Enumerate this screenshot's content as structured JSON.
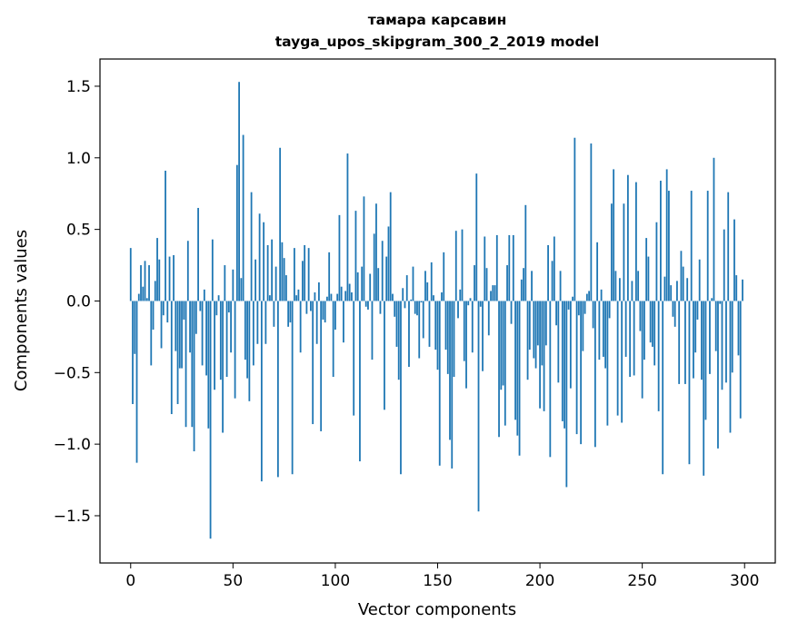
{
  "chart_data": {
    "type": "bar",
    "title": "тамара карсавин",
    "subtitle": "tayga_upos_skipgram_300_2_2019 model",
    "xlabel": "Vector components",
    "ylabel": "Components values",
    "xlim": [
      -15,
      315
    ],
    "ylim": [
      -1.83,
      1.69
    ],
    "xticks": [
      0,
      50,
      100,
      150,
      200,
      250,
      300
    ],
    "yticks": [
      -1.5,
      -1.0,
      -0.5,
      0.0,
      0.5,
      1.0,
      1.5
    ],
    "ytick_labels": [
      "−1.5",
      "−1.0",
      "−0.5",
      "0.0",
      "0.5",
      "1.0",
      "1.5"
    ],
    "grid": false,
    "bar_color": "#1f77b4",
    "x_start": 0,
    "values": [
      0.37,
      -0.72,
      -0.37,
      -1.13,
      0.05,
      0.25,
      0.1,
      0.28,
      0.02,
      0.25,
      -0.45,
      -0.2,
      0.14,
      0.44,
      0.29,
      -0.33,
      -0.1,
      0.91,
      -0.15,
      0.31,
      -0.79,
      0.32,
      -0.35,
      -0.72,
      -0.47,
      -0.47,
      -0.13,
      -0.88,
      0.42,
      -0.36,
      -0.88,
      -1.05,
      -0.23,
      0.65,
      -0.07,
      -0.45,
      0.08,
      -0.52,
      -0.89,
      -1.66,
      0.43,
      -0.62,
      -0.1,
      0.04,
      -0.55,
      -0.92,
      0.25,
      -0.53,
      -0.08,
      -0.36,
      0.22,
      -0.68,
      0.95,
      1.53,
      0.16,
      1.16,
      -0.41,
      -0.54,
      -0.7,
      0.76,
      -0.45,
      0.29,
      -0.3,
      0.61,
      -1.26,
      0.55,
      -0.3,
      0.39,
      0.04,
      0.43,
      -0.18,
      0.24,
      -1.23,
      1.07,
      0.41,
      0.3,
      0.18,
      -0.18,
      -0.15,
      -1.21,
      0.37,
      0.04,
      0.08,
      -0.36,
      0.28,
      0.39,
      -0.09,
      0.37,
      -0.07,
      -0.86,
      0.06,
      -0.3,
      0.13,
      -0.91,
      -0.13,
      -0.15,
      0.03,
      0.34,
      0.05,
      -0.53,
      -0.2,
      0.05,
      0.6,
      0.1,
      -0.29,
      0.07,
      1.03,
      0.12,
      0.06,
      -0.8,
      0.63,
      0.2,
      -1.12,
      0.24,
      0.73,
      -0.04,
      -0.06,
      0.19,
      -0.41,
      0.47,
      0.68,
      0.23,
      -0.09,
      0.42,
      -0.76,
      0.31,
      0.52,
      0.76,
      0.05,
      -0.11,
      -0.32,
      -0.55,
      -1.21,
      0.09,
      -0.05,
      0.18,
      -0.46,
      0.01,
      0.24,
      -0.09,
      -0.1,
      -0.4,
      -0.01,
      -0.26,
      0.21,
      0.13,
      -0.32,
      0.27,
      0.04,
      -0.34,
      -0.48,
      -1.15,
      0.06,
      0.34,
      -0.34,
      -0.51,
      -0.97,
      -1.17,
      -0.53,
      0.49,
      -0.12,
      0.08,
      0.5,
      -0.42,
      -0.61,
      -0.03,
      0.02,
      -0.36,
      0.25,
      0.89,
      -1.47,
      -0.04,
      -0.49,
      0.45,
      0.23,
      -0.24,
      0.07,
      0.11,
      0.11,
      0.46,
      -0.95,
      -0.62,
      -0.59,
      -0.87,
      0.25,
      0.46,
      -0.16,
      0.46,
      -0.83,
      -0.94,
      -1.08,
      0.15,
      0.23,
      0.67,
      -0.55,
      -0.34,
      0.21,
      -0.4,
      -0.47,
      -0.31,
      -0.75,
      -0.45,
      -0.77,
      -0.31,
      0.39,
      -1.09,
      0.28,
      0.45,
      -0.17,
      -0.57,
      0.21,
      -0.84,
      -0.89,
      -1.3,
      -0.06,
      -0.61,
      0.03,
      1.14,
      -0.93,
      -0.1,
      -1.0,
      -0.35,
      -0.09,
      0.05,
      0.07,
      1.1,
      -0.19,
      -1.02,
      0.41,
      -0.41,
      0.08,
      -0.39,
      -0.47,
      -0.87,
      -0.12,
      0.68,
      0.92,
      0.21,
      -0.8,
      0.16,
      -0.85,
      0.68,
      -0.39,
      0.88,
      -0.53,
      0.14,
      -0.52,
      0.83,
      0.21,
      -0.21,
      -0.68,
      -0.41,
      0.44,
      0.31,
      -0.29,
      -0.32,
      -0.45,
      0.55,
      -0.77,
      0.84,
      -1.21,
      0.17,
      0.92,
      0.77,
      0.11,
      -0.11,
      -0.18,
      0.14,
      -0.58,
      0.35,
      0.24,
      -0.58,
      0.16,
      -1.14,
      0.77,
      -0.54,
      -0.36,
      -0.13,
      0.29,
      -0.55,
      -1.22,
      -0.83,
      0.77,
      -0.51,
      0.02,
      1.0,
      -0.35,
      -1.03,
      -0.02,
      -0.62,
      0.5,
      -0.57,
      0.76,
      -0.92,
      -0.5,
      0.57,
      0.18,
      -0.38,
      -0.82,
      0.15
    ]
  }
}
